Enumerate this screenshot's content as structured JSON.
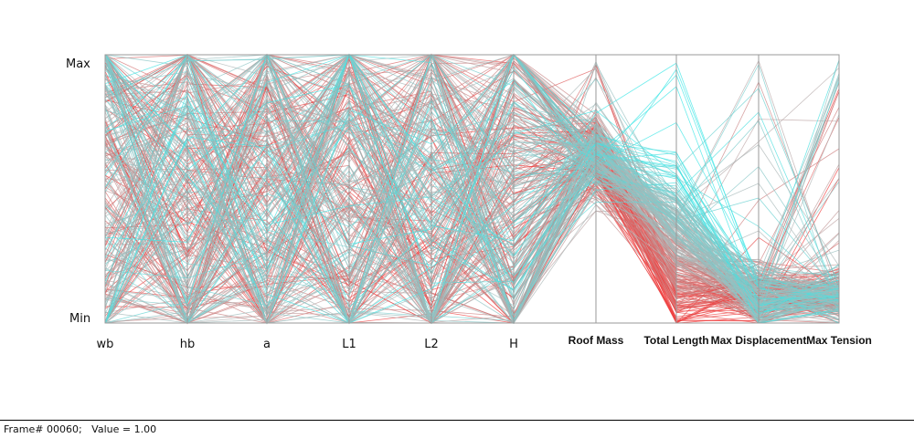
{
  "chart_data": {
    "type": "parallel_coordinates",
    "axes": [
      "wb",
      "hb",
      "a",
      "L1",
      "L2",
      "H",
      "Roof Mass",
      "Total Length",
      "Max Displacement",
      "Max Tension"
    ],
    "range_labels": {
      "max": "Max",
      "min": "Min"
    },
    "normalized_range": [
      0,
      1
    ],
    "color_scale": {
      "low": "#f03c3c",
      "mid": "#b4b4b4",
      "high": "#3ce6e6"
    },
    "line_count": 320,
    "series_profiles": {
      "Roof Mass": {
        "mean": 0.62,
        "spread": 0.12
      },
      "Total Length": {
        "mean": 0.28,
        "spread": 0.22
      },
      "Max Displacement": {
        "mean": 0.1,
        "spread": 0.08
      },
      "Max Tension": {
        "mean": 0.1,
        "spread": 0.07
      }
    }
  },
  "status": {
    "text": "Frame# 00060;   Value = 1.00"
  }
}
